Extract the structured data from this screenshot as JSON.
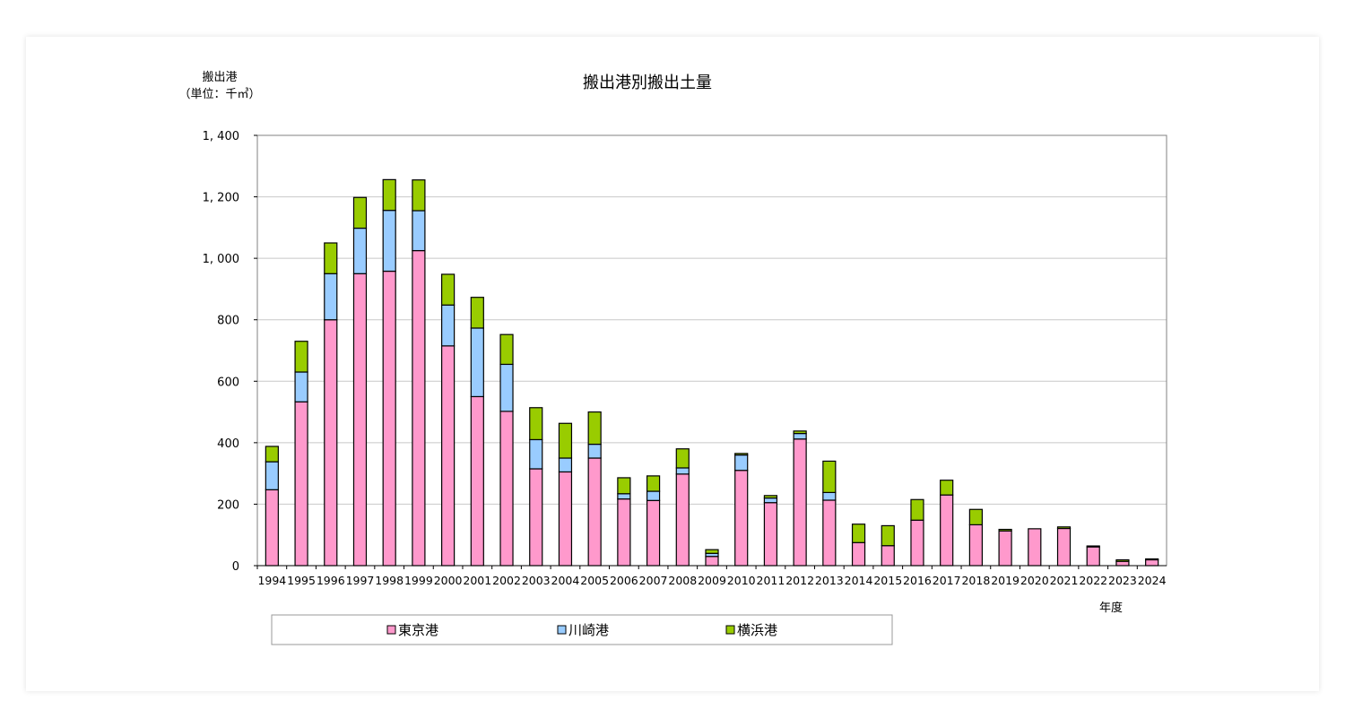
{
  "chart_data": {
    "type": "bar",
    "stacked": true,
    "title": "搬出港別搬出土量",
    "ylabel_line1": "搬出港",
    "ylabel_line2": "（単位：千㎥）",
    "xlabel": "年度",
    "ylim": [
      0,
      1400
    ],
    "yticks": [
      0,
      200,
      400,
      600,
      800,
      1000,
      1200,
      1400
    ],
    "ytick_labels": [
      "0",
      "200",
      "400",
      "600",
      "800",
      "1, 000",
      "1, 200",
      "1, 400"
    ],
    "grid": true,
    "legend_position": "bottom",
    "categories": [
      "1994",
      "1995",
      "1996",
      "1997",
      "1998",
      "1999",
      "2000",
      "2001",
      "2002",
      "2003",
      "2004",
      "2005",
      "2006",
      "2007",
      "2008",
      "2009",
      "2010",
      "2011",
      "2012",
      "2013",
      "2014",
      "2015",
      "2016",
      "2017",
      "2018",
      "2019",
      "2020",
      "2021",
      "2022",
      "2023",
      "2024"
    ],
    "series": [
      {
        "name": "東京港",
        "color": "#ff99cc",
        "values": [
          247,
          533,
          800,
          950,
          958,
          1025,
          715,
          550,
          502,
          315,
          305,
          350,
          217,
          212,
          298,
          30,
          310,
          205,
          412,
          213,
          75,
          65,
          148,
          230,
          133,
          113,
          120,
          121,
          61,
          14,
          19
        ]
      },
      {
        "name": "川崎港",
        "color": "#99ccff",
        "values": [
          91,
          97,
          150,
          148,
          198,
          130,
          133,
          223,
          153,
          95,
          45,
          45,
          17,
          30,
          20,
          10,
          50,
          15,
          18,
          25,
          0,
          0,
          0,
          0,
          0,
          0,
          0,
          0,
          0,
          0,
          0
        ]
      },
      {
        "name": "横浜港",
        "color": "#99cc00",
        "values": [
          50,
          100,
          100,
          100,
          100,
          100,
          100,
          100,
          97,
          104,
          113,
          105,
          52,
          50,
          62,
          12,
          5,
          8,
          8,
          102,
          60,
          65,
          67,
          48,
          50,
          5,
          0,
          5,
          3,
          5,
          3
        ]
      }
    ]
  }
}
